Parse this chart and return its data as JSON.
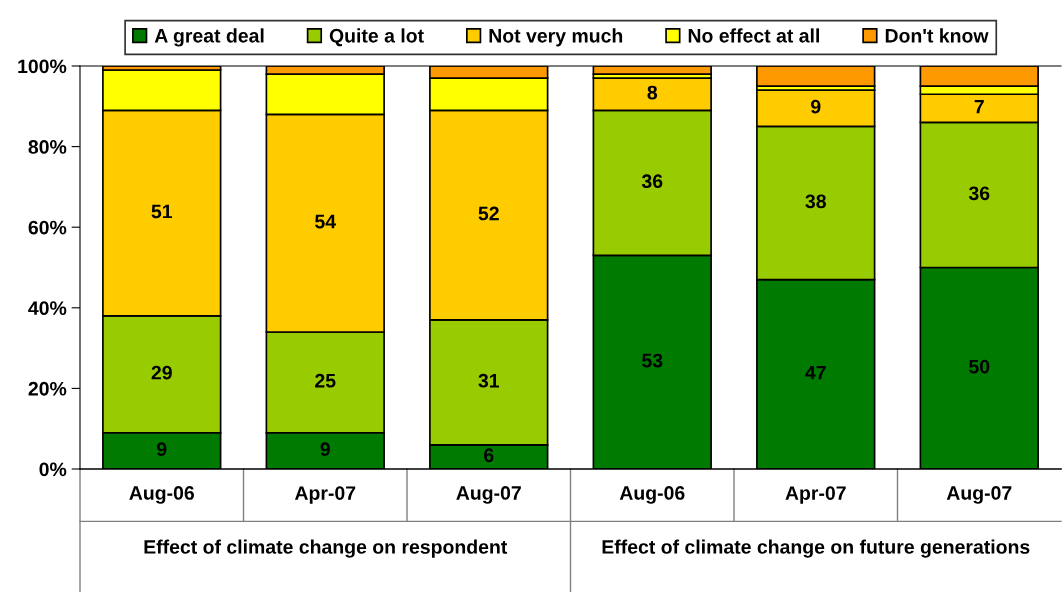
{
  "chart_data": {
    "type": "bar",
    "stacked": true,
    "categories": [
      "Aug-06",
      "Apr-07",
      "Aug-07",
      "Aug-06",
      "Apr-07",
      "Aug-07"
    ],
    "series": [
      {
        "name": "A great deal",
        "color": "#007a00",
        "values": [
          9,
          9,
          6,
          53,
          47,
          50
        ],
        "value_labels": [
          "9",
          "9",
          "6",
          "53",
          "47",
          "50"
        ]
      },
      {
        "name": "Quite a lot",
        "color": "#99cc00",
        "values": [
          29,
          25,
          31,
          36,
          38,
          36
        ],
        "value_labels": [
          "29",
          "25",
          "31",
          "36",
          "38",
          "36"
        ]
      },
      {
        "name": "Not very much",
        "color": "#ffcc00",
        "values": [
          51,
          54,
          52,
          8,
          9,
          7
        ],
        "value_labels": [
          "51",
          "54",
          "52",
          "8",
          "9",
          "7"
        ]
      },
      {
        "name": "No effect at all",
        "color": "#ffff00",
        "values": [
          10,
          10,
          8,
          1,
          1,
          2
        ],
        "value_labels": [
          null,
          null,
          null,
          null,
          null,
          null
        ]
      },
      {
        "name": "Don't know",
        "color": "#ff9900",
        "values": [
          1,
          2,
          3,
          2,
          5,
          5
        ],
        "value_labels": [
          null,
          null,
          null,
          null,
          null,
          null
        ]
      }
    ],
    "ylim": [
      0,
      100
    ],
    "yticks": [
      {
        "value": 0,
        "label": "0%"
      },
      {
        "value": 20,
        "label": "20%"
      },
      {
        "value": 40,
        "label": "40%"
      },
      {
        "value": 60,
        "label": "60%"
      },
      {
        "value": 80,
        "label": "80%"
      },
      {
        "value": 100,
        "label": "100%"
      }
    ],
    "grid": false,
    "legend": "top",
    "annotations": [
      "Effect of climate change on respondent",
      "Effect of climate change on future generations"
    ]
  }
}
